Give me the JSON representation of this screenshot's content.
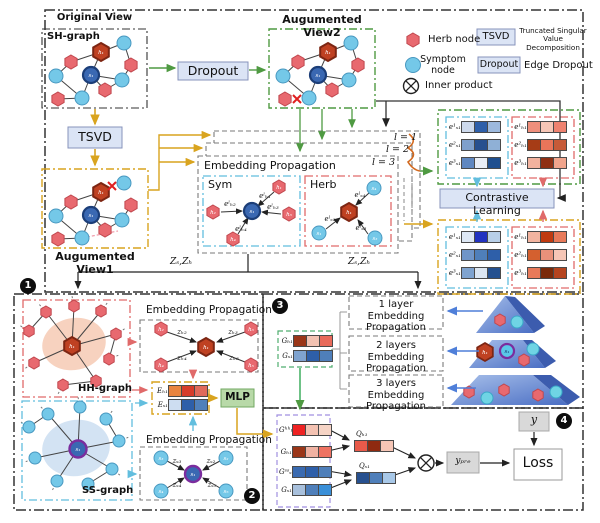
{
  "legend": {
    "herb_node": "Herb node",
    "symptom_node": "Symptom node",
    "inner_product": "Inner product",
    "tsvd": "TSVD",
    "tsvd_full": "Truncated Singular Value Decomposition",
    "dropout": "Dropout",
    "dropout_full": "Edge Dropout"
  },
  "colors": {
    "herb_red": "#e8696f",
    "herb_dark": "#bf4122",
    "symptom_blue": "#74c8e8",
    "symptom_dark": "#3a68b2",
    "purple_ring": "#7b2d9e",
    "button_blue": "#dbe4f5",
    "mlp_green": "#b8d9a8",
    "arrow_green": "#4f9a42",
    "arrow_yellow": "#d9a41f"
  },
  "top": {
    "original_view": "Original View",
    "sh_graph": "SH-graph",
    "dropout_btn": "Dropout",
    "view2": "Augumented View2",
    "tsvd_btn": "TSVD",
    "view1": "Augumented View1",
    "layers": [
      "l = 1",
      "l = 2",
      "l = 3"
    ],
    "ep_title": "Embedding Propagation",
    "sym": "Sym",
    "herb": "Herb",
    "z_flow": "Zₛ,Zₕ",
    "contrastive": "Contrastive Learning",
    "sh_center_h": "h₁",
    "sh_center_s": "s₁",
    "sym_graph": {
      "center": "s₁",
      "nodes": [
        "h₁",
        "h₂",
        "h₃",
        "h₄"
      ],
      "edges": [
        "eˡₕ₁",
        "eˡₕ₂",
        "eˡₕ₃",
        "eˡₕ₄"
      ]
    },
    "herb_graph": {
      "center": "h₁",
      "nodes": [
        "s₄",
        "s₁",
        "s₃"
      ],
      "edges": [
        "eˡₛ₄",
        "eˡₛ₁",
        "eˡₛ₃"
      ]
    }
  },
  "embeds": {
    "view2_sym": {
      "labels": [
        "e¹ₛ₁",
        "e²ₛ₁",
        "e³ₛ₁"
      ],
      "cells": [
        [
          "#cdd9ec",
          "#2e5fa9",
          "#9db9dd"
        ],
        [
          "#7fa0cc",
          "#27508f",
          "#8fb0d6"
        ],
        [
          "#5f87c0",
          "#e9eef6",
          "#1f4f8f"
        ]
      ]
    },
    "view2_herb": {
      "labels": [
        "e¹ₕ₁",
        "e²ₕ₁",
        "e³ₕ₁"
      ],
      "cells": [
        [
          "#ef8f7c",
          "#f6c6b6",
          "#ee8270"
        ],
        [
          "#a63c16",
          "#e9755a",
          "#c65a38"
        ],
        [
          "#f2b29e",
          "#8f3014",
          "#f0a48c"
        ]
      ]
    },
    "view1_sym": {
      "labels": [
        "e¹ₛ₁",
        "e²ₛ₁",
        "e³ₛ₁"
      ],
      "cells": [
        [
          "#dde7f4",
          "#2232c0",
          "#b8cfe8"
        ],
        [
          "#6f95c8",
          "#4f7fba",
          "#2e5fa9"
        ],
        [
          "#7fa3cf",
          "#dce6f2",
          "#24508f"
        ]
      ]
    },
    "view1_herb": {
      "labels": [
        "e¹ₕ₁",
        "e²ₕ₁",
        "e³ₕ₁"
      ],
      "cells": [
        [
          "#f2b4a0",
          "#c03a10",
          "#e87a5a"
        ],
        [
          "#d4602f",
          "#e8917a",
          "#f6c6b6"
        ],
        [
          "#e87a5a",
          "#7a2a0a",
          "#b5441f"
        ]
      ]
    }
  },
  "bottom_left": {
    "hh_graph": "HH-graph",
    "ss_graph": "SS-graph",
    "ep_title": "Embedding Propagation",
    "hh": {
      "center": "h₁",
      "nodes": [
        "h₂",
        "h₃",
        "h₄",
        "h₅"
      ],
      "edges": [
        "zₕ₂",
        "zₕ₃",
        "zₕ₄",
        "zₕ₅"
      ]
    },
    "ss": {
      "center": "s₁",
      "nodes": [
        "s₃",
        "s₂",
        "s₄",
        "s₅"
      ],
      "edges": [
        "zₛ₃",
        "zₛ₂",
        "zₛ₄",
        "zₛ₅"
      ]
    },
    "e_rows": [
      {
        "label": "Eₕ₁",
        "cells": [
          "#e8843f",
          "#d63c2a",
          "#e06a5a"
        ]
      },
      {
        "label": "Eₛ₁",
        "cells": [
          "#cdddf1",
          "#2e5fa9",
          "#5080bb"
        ]
      }
    ],
    "mlp": "MLP"
  },
  "section3": {
    "g_rows": [
      {
        "label": "Gₕ₁",
        "cells": [
          "#9a3618",
          "#f2c2b2",
          "#e86a5a"
        ]
      },
      {
        "label": "Gₛ₁",
        "cells": [
          "#7fa3cf",
          "#2e5fa9",
          "#4f7fba"
        ]
      }
    ],
    "layer_boxes": [
      "1 layer Embedding Propagation",
      "2 layers Embedding Propagation",
      "3 layers Embedding Propagation"
    ],
    "pyr_h": "h₁",
    "pyr_s": "s₁"
  },
  "section4": {
    "g_rows": [
      {
        "label": "Gʰʰₕ₁",
        "cells": [
          "#ee2222",
          "#f4c2b2",
          "#f6d4c6"
        ]
      },
      {
        "label": "Gₕ₁",
        "cells": [
          "#9a3618",
          "#f0b2a2",
          "#ee7262"
        ]
      },
      {
        "label": "Gˢˢₛ₁",
        "cells": [
          "#3a6ab0",
          "#2e5fa9",
          "#4f7fba"
        ]
      },
      {
        "label": "Gₛ₁",
        "cells": [
          "#a8c0dc",
          "#4f7fba",
          "#3a8fd8"
        ]
      }
    ],
    "q_rows": [
      {
        "label": "Qₕ₁",
        "cells": [
          "#e85a4a",
          "#8f2a10",
          "#f6c6b6"
        ]
      },
      {
        "label": "Qₛ₁",
        "cells": [
          "#27508f",
          "#4f7fba",
          "#a8c8e8"
        ]
      }
    ],
    "y": "y",
    "y_pre": "yₚᵣₑ",
    "loss": "Loss"
  },
  "badges": [
    "1",
    "2",
    "3",
    "4"
  ]
}
